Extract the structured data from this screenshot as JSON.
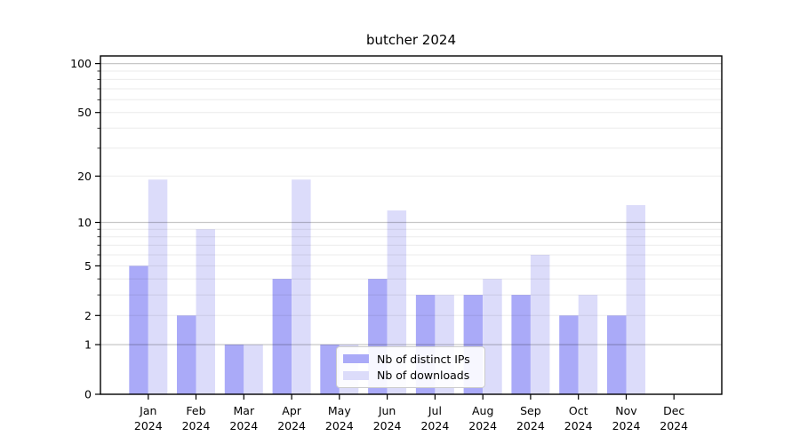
{
  "chart_data": {
    "type": "bar",
    "title": "butcher 2024",
    "categories": [
      "Jan 2024",
      "Feb 2024",
      "Mar 2024",
      "Apr 2024",
      "May 2024",
      "Jun 2024",
      "Jul 2024",
      "Aug 2024",
      "Sep 2024",
      "Oct 2024",
      "Nov 2024",
      "Dec 2024"
    ],
    "series": [
      {
        "name": "Nb of distinct IPs",
        "color": "#aaaaf8",
        "values": [
          5,
          2,
          1,
          4,
          1,
          4,
          3,
          3,
          3,
          2,
          2,
          0
        ]
      },
      {
        "name": "Nb of downloads",
        "color": "#dcdcfa",
        "values": [
          19,
          9,
          1,
          19,
          1,
          12,
          3,
          4,
          6,
          3,
          13,
          0
        ]
      }
    ],
    "yscale": "log1p",
    "ylim": [
      0,
      110
    ],
    "xlim_units": [
      -1,
      12
    ],
    "yticks_labeled": [
      0,
      1,
      2,
      5,
      10,
      20,
      50,
      100
    ],
    "gridlines_major": [
      1,
      10,
      100
    ],
    "gridlines_minor": [
      2,
      3,
      4,
      5,
      6,
      7,
      8,
      9,
      20,
      30,
      40,
      50,
      60,
      70,
      80,
      90
    ],
    "grid": "horizontal",
    "legend_position": "inside bottom-center",
    "colors": {
      "grid_major": "rgba(0,0,0,0.22)",
      "grid_minor": "rgba(0,0,0,0.08)",
      "axis": "#000000",
      "background": "#ffffff"
    }
  }
}
